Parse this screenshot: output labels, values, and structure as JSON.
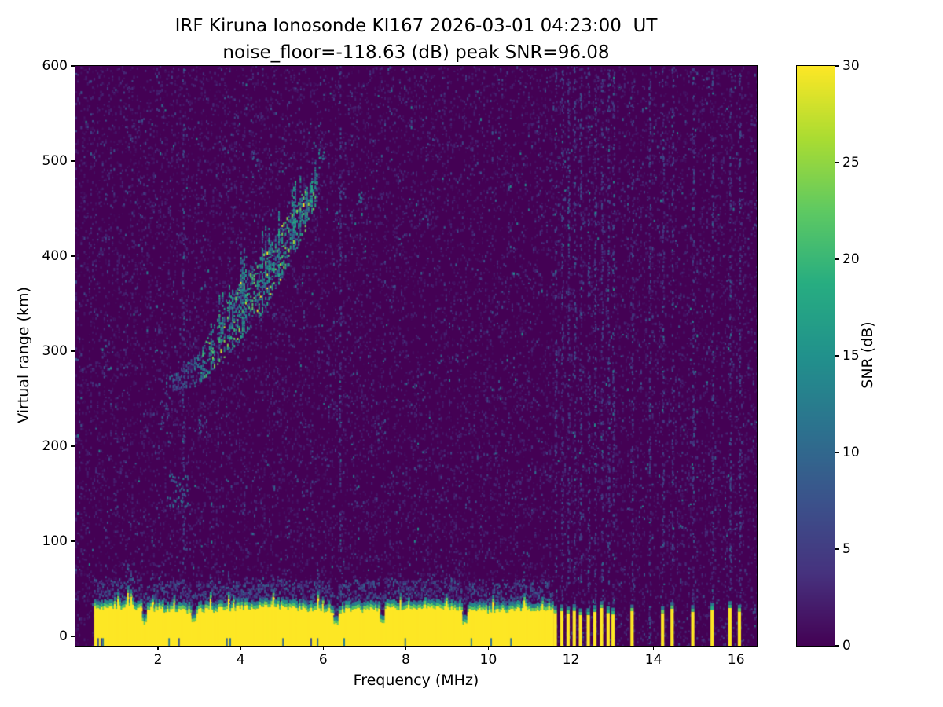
{
  "chart_data": {
    "type": "heatmap",
    "title": "IRF Kiruna Ionosonde KI167 2026-03-01 04:23:00  UT",
    "subtitle": "noise_floor=-118.63 (dB) peak SNR=96.08",
    "xlabel": "Frequency (MHz)",
    "ylabel": "Virtual range (km)",
    "xlim": [
      0,
      16.5
    ],
    "ylim": [
      -10,
      600
    ],
    "x_ticks": [
      2,
      4,
      6,
      8,
      10,
      12,
      14,
      16
    ],
    "y_ticks": [
      0,
      100,
      200,
      300,
      400,
      500,
      600
    ],
    "grid": false,
    "legend": "none",
    "noise_floor_db": -118.63,
    "peak_snr_db": 96.08,
    "colorbar": {
      "label": "SNR (dB)",
      "min": 0,
      "max": 30,
      "ticks": [
        0,
        5,
        10,
        15,
        20,
        25,
        30
      ],
      "colormap": "viridis"
    },
    "colormap_stops": [
      [
        0.0,
        "#440154"
      ],
      [
        0.125,
        "#46327e"
      ],
      [
        0.25,
        "#3b528b"
      ],
      [
        0.375,
        "#2c728e"
      ],
      [
        0.5,
        "#21918c"
      ],
      [
        0.625,
        "#27ad81"
      ],
      [
        0.75,
        "#5ec962"
      ],
      [
        0.875,
        "#aadc32"
      ],
      [
        1.0,
        "#fde725"
      ]
    ],
    "render_seed": 167,
    "noise": {
      "speckles_per_column": 52,
      "column_step_mhz": 0.04
    },
    "features": {
      "ground_band": {
        "f_start_mhz": 0.45,
        "f_end_mhz": 11.55,
        "top_km": 30,
        "snr_db": 30,
        "notch_freqs_mhz": [
          1.65,
          2.85,
          6.3,
          7.4,
          9.4
        ]
      },
      "ground_stripes_mhz": [
        11.62,
        11.78,
        11.93,
        12.08,
        12.23,
        12.42,
        12.58,
        12.74,
        12.9,
        13.02,
        13.48,
        14.22,
        14.45,
        14.95,
        15.42,
        15.85,
        16.08
      ],
      "rfi_stripes_mhz": [
        11.62,
        11.78,
        11.93,
        12.08,
        12.23,
        12.42,
        12.58,
        12.74,
        12.9,
        13.02,
        13.48,
        13.9,
        14.22,
        14.45,
        14.95,
        15.42,
        15.85,
        16.08,
        6.4,
        2.6
      ],
      "echo_region": {
        "f_mhz": [
          2.15,
          2.5,
          3.0,
          3.5,
          4.0,
          4.5,
          5.0,
          5.5,
          5.85
        ],
        "lower_km": [
          258,
          262,
          270,
          290,
          315,
          342,
          380,
          422,
          462
        ],
        "upper_km": [
          272,
          282,
          300,
          342,
          382,
          404,
          434,
          468,
          492
        ],
        "peak_snr_db": 26
      },
      "blobs": [
        {
          "f_mhz": 2.45,
          "range_km": 155,
          "df": 0.28,
          "dr": 18,
          "snr_db": 10,
          "n": 42
        },
        {
          "f_mhz": 2.15,
          "range_km": 238,
          "df": 0.12,
          "dr": 22,
          "snr_db": 7,
          "n": 14
        },
        {
          "f_mhz": 3.05,
          "range_km": 225,
          "df": 0.08,
          "dr": 10,
          "snr_db": 8,
          "n": 10
        },
        {
          "f_mhz": 5.95,
          "range_km": 505,
          "df": 0.07,
          "dr": 12,
          "snr_db": 13,
          "n": 9
        },
        {
          "f_mhz": 6.9,
          "range_km": 466,
          "df": 0.06,
          "dr": 10,
          "snr_db": 14,
          "n": 7
        },
        {
          "f_mhz": 4.35,
          "range_km": 505,
          "df": 0.1,
          "dr": 15,
          "snr_db": 8,
          "n": 8
        }
      ]
    }
  }
}
